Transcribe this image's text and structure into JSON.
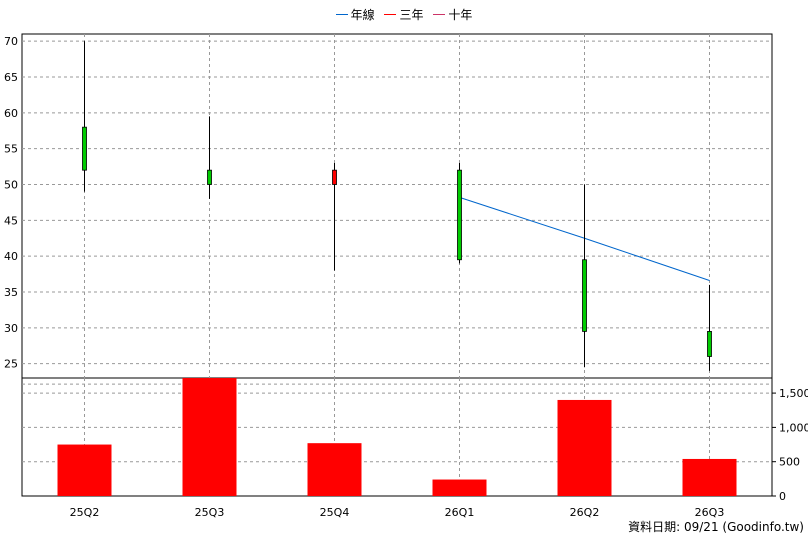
{
  "legend": [
    {
      "label": "年線",
      "color": "#0066cc"
    },
    {
      "label": "三年",
      "color": "#ff0000"
    },
    {
      "label": "十年",
      "color": "#cc3366"
    }
  ],
  "footer_text": "資料日期: 09/21 (Goodinfo.tw)",
  "colors": {
    "up": "#ff0000",
    "down": "#00cc00",
    "volume": "#ff0000",
    "year_line": "#0066cc",
    "grid": "#999999"
  },
  "chart_data": [
    {
      "type": "candlestick",
      "categories": [
        "25Q2",
        "25Q3",
        "25Q4",
        "26Q1",
        "26Q2",
        "26Q3"
      ],
      "ohlc": [
        {
          "open": 58,
          "high": 70,
          "low": 49,
          "close": 52
        },
        {
          "open": 52,
          "high": 59.5,
          "low": 48,
          "close": 50
        },
        {
          "open": 50,
          "high": 53,
          "low": 38,
          "close": 52
        },
        {
          "open": 52,
          "high": 53,
          "low": 39,
          "close": 39.5
        },
        {
          "open": 39.5,
          "high": 50,
          "low": 24.5,
          "close": 29.5
        },
        {
          "open": 29.5,
          "high": 36,
          "low": 24,
          "close": 26
        }
      ],
      "series": [
        {
          "name": "年線",
          "values": [
            null,
            null,
            null,
            48.2,
            42.5,
            36.6
          ]
        }
      ],
      "yticks": [
        25,
        30,
        35,
        40,
        45,
        50,
        55,
        60,
        65,
        70
      ],
      "ylim": [
        23,
        71
      ],
      "grid": true,
      "legend_position": "top-center"
    },
    {
      "type": "bar",
      "categories": [
        "25Q2",
        "25Q3",
        "25Q4",
        "26Q1",
        "26Q2",
        "26Q3"
      ],
      "values": [
        750,
        1730,
        770,
        240,
        1400,
        540
      ],
      "yticks": [
        "0",
        "500",
        "1,000",
        "1,500"
      ],
      "ytick_values": [
        0,
        500,
        1000,
        1500
      ],
      "ylim": [
        0,
        1720
      ],
      "grid": true
    }
  ]
}
